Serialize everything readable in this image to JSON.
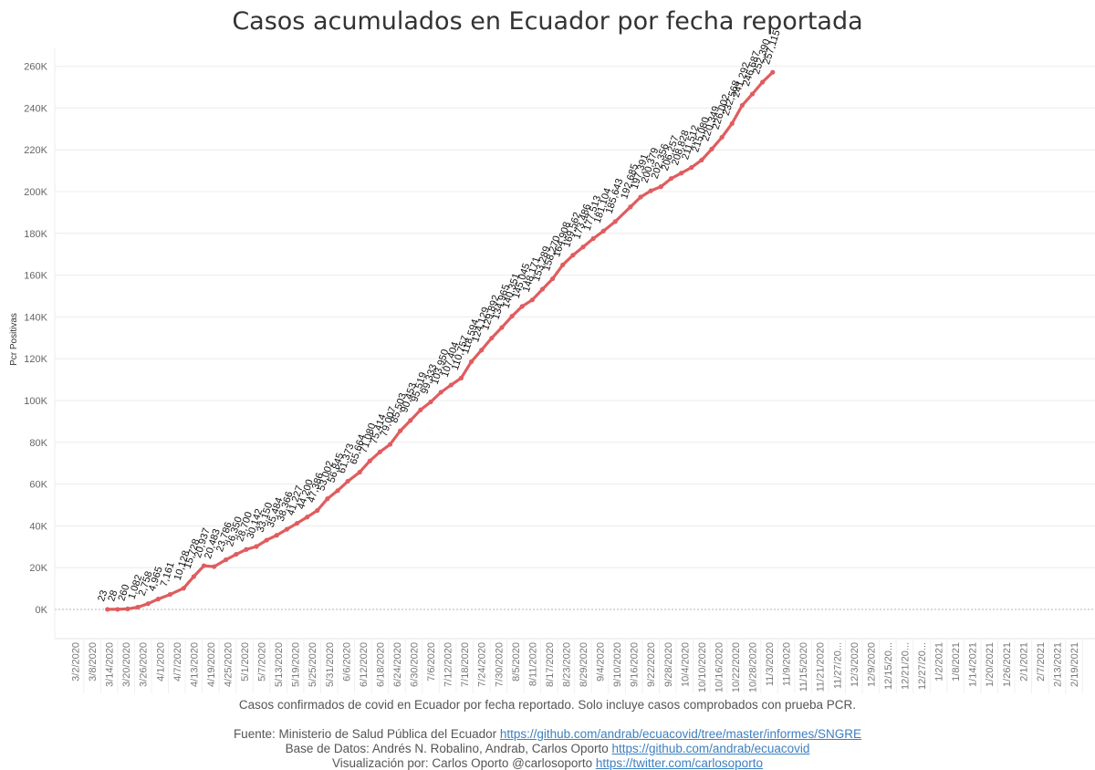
{
  "chart_data": {
    "type": "line",
    "title": "Casos acumulados en Ecuador por fecha reportada",
    "ylabel": "Pcr Positivas",
    "xlabel": "",
    "ylim": [
      0,
      270000
    ],
    "y_ticks": [
      0,
      20000,
      40000,
      60000,
      80000,
      100000,
      120000,
      140000,
      160000,
      180000,
      200000,
      220000,
      240000,
      260000
    ],
    "y_tick_labels": [
      "0K",
      "20K",
      "40K",
      "60K",
      "80K",
      "100K",
      "120K",
      "140K",
      "160K",
      "180K",
      "200K",
      "220K",
      "240K",
      "260K"
    ],
    "x_tick_labels": [
      "3/2/2020",
      "3/8/2020",
      "3/14/2020",
      "3/20/2020",
      "3/26/2020",
      "4/1/2020",
      "4/7/2020",
      "4/13/2020",
      "4/19/2020",
      "4/25/2020",
      "5/1/2020",
      "5/7/2020",
      "5/13/2020",
      "5/19/2020",
      "5/25/2020",
      "5/31/2020",
      "6/6/2020",
      "6/12/2020",
      "6/18/2020",
      "6/24/2020",
      "6/30/2020",
      "7/6/2020",
      "7/12/2020",
      "7/18/2020",
      "7/24/2020",
      "7/30/2020",
      "8/5/2020",
      "8/11/2020",
      "8/17/2020",
      "8/23/2020",
      "8/29/2020",
      "9/4/2020",
      "9/10/2020",
      "9/16/2020",
      "9/22/2020",
      "9/28/2020",
      "10/4/2020",
      "10/10/2020",
      "10/16/2020",
      "10/22/2020",
      "10/28/2020",
      "11/3/2020",
      "11/9/2020",
      "11/15/2020",
      "11/21/2020",
      "11/27/20...",
      "12/3/2020",
      "12/9/2020",
      "12/15/20...",
      "12/21/20...",
      "12/27/20...",
      "1/2/2021",
      "1/8/2021",
      "1/14/2021",
      "1/20/2021",
      "1/26/2021",
      "2/1/2021",
      "2/7/2021",
      "2/13/2021",
      "2/19/2021"
    ],
    "grid": true,
    "color": "#e05c5f",
    "series": [
      {
        "points": [
          [
            1.9,
            23
          ],
          [
            2.5,
            28
          ],
          [
            3.1,
            260
          ],
          [
            3.7,
            1082
          ],
          [
            4.3,
            2758
          ],
          [
            4.9,
            4965
          ],
          [
            5.6,
            7161
          ],
          [
            6.4,
            10128
          ],
          [
            7.0,
            15728
          ],
          [
            7.6,
            20937
          ],
          [
            8.2,
            20483
          ],
          [
            8.9,
            23786
          ],
          [
            9.5,
            26350
          ],
          [
            10.1,
            28700
          ],
          [
            10.7,
            30142
          ],
          [
            11.3,
            33150
          ],
          [
            11.9,
            35484
          ],
          [
            12.5,
            38366
          ],
          [
            13.1,
            41227
          ],
          [
            13.7,
            44200
          ],
          [
            14.3,
            47386
          ],
          [
            14.9,
            53002
          ],
          [
            15.5,
            56845
          ],
          [
            16.1,
            61373
          ],
          [
            16.8,
            65664
          ],
          [
            17.4,
            71080
          ],
          [
            18.0,
            75414
          ],
          [
            18.6,
            79007
          ],
          [
            19.2,
            85503
          ],
          [
            19.8,
            90453
          ],
          [
            20.4,
            95519
          ],
          [
            21.0,
            99333
          ],
          [
            21.6,
            103950
          ],
          [
            22.2,
            107404
          ],
          [
            22.8,
            110757
          ],
          [
            23.4,
            118594
          ],
          [
            24.0,
            124129
          ],
          [
            24.6,
            129892
          ],
          [
            25.2,
            134965
          ],
          [
            25.8,
            140351
          ],
          [
            26.4,
            145045
          ],
          [
            27.0,
            148171
          ],
          [
            27.6,
            153289
          ],
          [
            28.2,
            158270
          ],
          [
            28.8,
            164908
          ],
          [
            29.4,
            169562
          ],
          [
            30.0,
            173486
          ],
          [
            30.6,
            177513
          ],
          [
            31.2,
            181104
          ],
          [
            31.9,
            185643
          ],
          [
            32.8,
            192685
          ],
          [
            33.4,
            197391
          ],
          [
            34.0,
            200379
          ],
          [
            34.6,
            202356
          ],
          [
            35.2,
            206257
          ],
          [
            35.8,
            208828
          ],
          [
            36.4,
            211512
          ],
          [
            37.0,
            215080
          ],
          [
            37.6,
            220349
          ],
          [
            38.2,
            226002
          ],
          [
            38.8,
            232568
          ],
          [
            39.4,
            241292
          ],
          [
            40.0,
            246687
          ],
          [
            40.6,
            252390
          ],
          [
            41.2,
            257115
          ]
        ]
      }
    ],
    "data_labels": [
      {
        "x": 1.9,
        "y": 23,
        "text": "23"
      },
      {
        "x": 2.5,
        "y": 28,
        "text": "28"
      },
      {
        "x": 3.1,
        "y": 260,
        "text": "260"
      },
      {
        "x": 3.7,
        "y": 1082,
        "text": "1,082"
      },
      {
        "x": 4.3,
        "y": 2758,
        "text": "2,758"
      },
      {
        "x": 4.9,
        "y": 4965,
        "text": "4,965"
      },
      {
        "x": 5.6,
        "y": 7161,
        "text": "7,161"
      },
      {
        "x": 6.4,
        "y": 10128,
        "text": "10,128"
      },
      {
        "x": 7.0,
        "y": 15728,
        "text": "15,728"
      },
      {
        "x": 7.6,
        "y": 20937,
        "text": "20,937"
      },
      {
        "x": 8.2,
        "y": 20483,
        "text": "20,483"
      },
      {
        "x": 8.9,
        "y": 23786,
        "text": "23,786"
      },
      {
        "x": 9.5,
        "y": 26350,
        "text": "26,350"
      },
      {
        "x": 10.1,
        "y": 28700,
        "text": "28,700"
      },
      {
        "x": 10.7,
        "y": 30142,
        "text": "30,142"
      },
      {
        "x": 11.3,
        "y": 33150,
        "text": "33,150"
      },
      {
        "x": 11.9,
        "y": 35484,
        "text": "35,484"
      },
      {
        "x": 12.5,
        "y": 38366,
        "text": "38,366"
      },
      {
        "x": 13.1,
        "y": 41227,
        "text": "41,227"
      },
      {
        "x": 13.7,
        "y": 44200,
        "text": "44,200"
      },
      {
        "x": 14.3,
        "y": 47386,
        "text": "47,386"
      },
      {
        "x": 14.9,
        "y": 53002,
        "text": "53,002"
      },
      {
        "x": 15.5,
        "y": 56845,
        "text": "56,845"
      },
      {
        "x": 16.1,
        "y": 61373,
        "text": "61,373"
      },
      {
        "x": 16.8,
        "y": 65664,
        "text": "65,664"
      },
      {
        "x": 17.4,
        "y": 71080,
        "text": "71,080"
      },
      {
        "x": 18.0,
        "y": 75414,
        "text": "75,414"
      },
      {
        "x": 18.6,
        "y": 79007,
        "text": "79,007"
      },
      {
        "x": 19.2,
        "y": 85503,
        "text": "85,503"
      },
      {
        "x": 19.8,
        "y": 90453,
        "text": "90,453"
      },
      {
        "x": 20.4,
        "y": 95519,
        "text": "95,519"
      },
      {
        "x": 21.0,
        "y": 99333,
        "text": "99,333"
      },
      {
        "x": 21.6,
        "y": 103950,
        "text": "103,950"
      },
      {
        "x": 22.2,
        "y": 107404,
        "text": "107,404"
      },
      {
        "x": 22.8,
        "y": 110757,
        "text": "110,757"
      },
      {
        "x": 23.4,
        "y": 118594,
        "text": "118,594"
      },
      {
        "x": 24.0,
        "y": 124129,
        "text": "124,129"
      },
      {
        "x": 24.6,
        "y": 129892,
        "text": "129,892"
      },
      {
        "x": 25.2,
        "y": 134965,
        "text": "134,965"
      },
      {
        "x": 25.8,
        "y": 140351,
        "text": "140,351"
      },
      {
        "x": 26.4,
        "y": 145045,
        "text": "145,045"
      },
      {
        "x": 27.0,
        "y": 148171,
        "text": "148,171"
      },
      {
        "x": 27.6,
        "y": 153289,
        "text": "153,289"
      },
      {
        "x": 28.2,
        "y": 158270,
        "text": "158,270"
      },
      {
        "x": 28.8,
        "y": 164908,
        "text": "164,908"
      },
      {
        "x": 29.4,
        "y": 169562,
        "text": "169,562"
      },
      {
        "x": 30.0,
        "y": 173486,
        "text": "173,486"
      },
      {
        "x": 30.6,
        "y": 177513,
        "text": "177,513"
      },
      {
        "x": 31.2,
        "y": 181104,
        "text": "181,104"
      },
      {
        "x": 31.9,
        "y": 185643,
        "text": "185,643"
      },
      {
        "x": 32.8,
        "y": 192685,
        "text": "192,685"
      },
      {
        "x": 33.4,
        "y": 197391,
        "text": "197,391"
      },
      {
        "x": 34.0,
        "y": 200379,
        "text": "200,379"
      },
      {
        "x": 34.6,
        "y": 202356,
        "text": "202,356"
      },
      {
        "x": 35.2,
        "y": 206257,
        "text": "206,257"
      },
      {
        "x": 35.8,
        "y": 208828,
        "text": "208,828"
      },
      {
        "x": 36.4,
        "y": 211512,
        "text": "211,512"
      },
      {
        "x": 37.0,
        "y": 215080,
        "text": "215,080"
      },
      {
        "x": 37.6,
        "y": 220349,
        "text": "220,349"
      },
      {
        "x": 38.2,
        "y": 226002,
        "text": "226,002"
      },
      {
        "x": 38.8,
        "y": 232568,
        "text": "232,568"
      },
      {
        "x": 39.4,
        "y": 241292,
        "text": "241,292"
      },
      {
        "x": 40.0,
        "y": 246687,
        "text": "246,687"
      },
      {
        "x": 40.6,
        "y": 252390,
        "text": "252,390"
      },
      {
        "x": 41.2,
        "y": 257115,
        "text": "257,115"
      }
    ]
  },
  "footer": {
    "note": "Casos confirmados de covid en Ecuador por fecha reportado. Solo incluye casos comprobados con prueba PCR.",
    "source_label": "Fuente: Ministerio de Salud Pública del Ecuador ",
    "source_link": "https://github.com/andrab/ecuacovid/tree/master/informes/SNGRE",
    "db_label": "Base de Datos: Andrés N. Robalino, Andrab, Carlos Oporto ",
    "db_link": "https://github.com/andrab/ecuacovid",
    "viz_label": "Visualización por: Carlos Oporto @carlosoporto ",
    "viz_link": "https://twitter.com/carlosoporto"
  }
}
